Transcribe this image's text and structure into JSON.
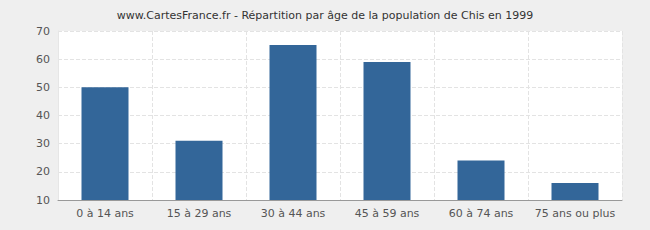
{
  "chart_data": {
    "type": "bar",
    "title": "www.CartesFrance.fr - Répartition par âge de la population de Chis en 1999",
    "categories": [
      "0 à 14 ans",
      "15 à 29 ans",
      "30 à 44 ans",
      "45 à 59 ans",
      "60 à 74 ans",
      "75 ans ou plus"
    ],
    "values": [
      50,
      31,
      65,
      59,
      24,
      16
    ],
    "color": "#336699",
    "ylim": [
      10,
      70
    ],
    "yticks": [
      10,
      20,
      30,
      40,
      50,
      60,
      70
    ],
    "grid": true
  }
}
